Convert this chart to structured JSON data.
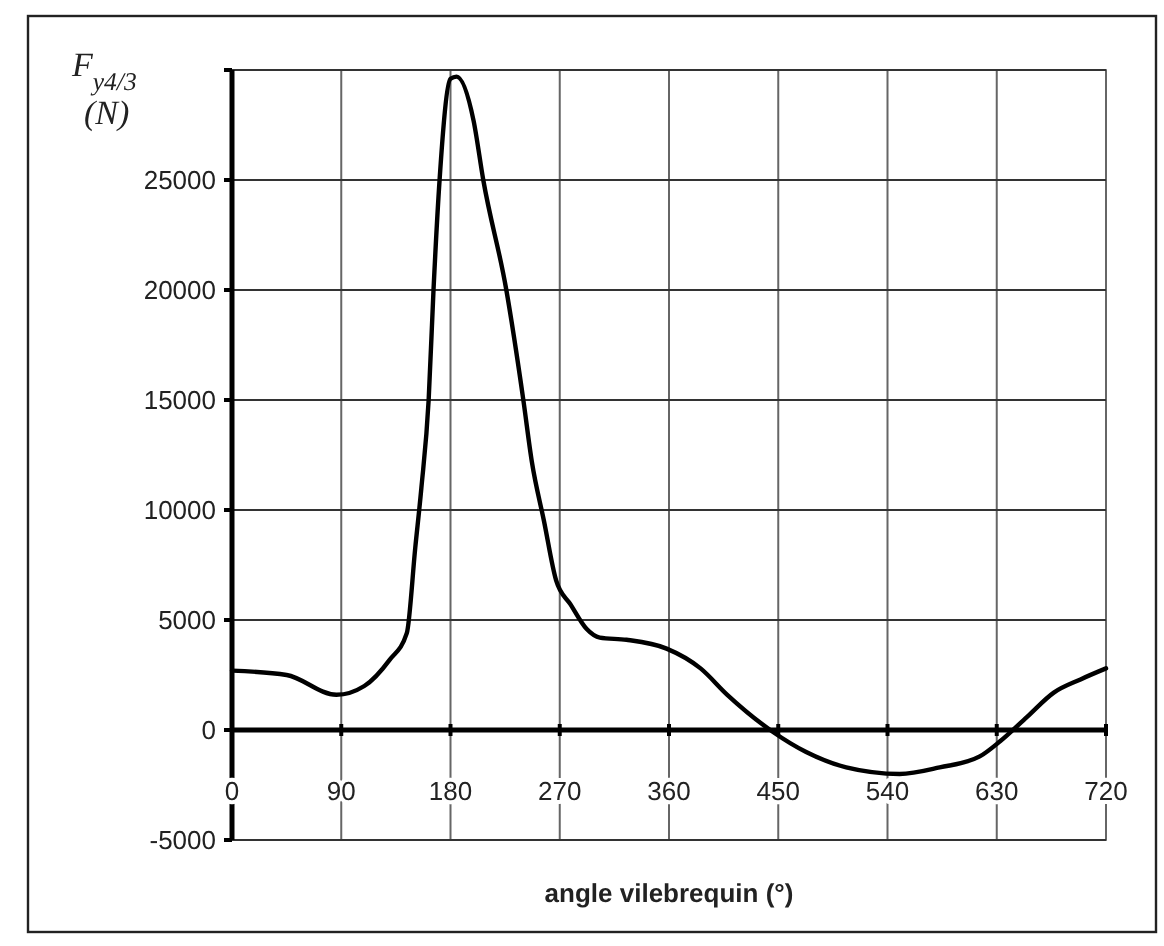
{
  "chart_data": {
    "type": "line",
    "xlabel": "angle vilebrequin (°)",
    "ylabel": "F$_{y4/3}$ (N)",
    "xlim": [
      0,
      720
    ],
    "xticks": [
      0,
      90,
      180,
      270,
      360,
      450,
      540,
      630,
      720
    ],
    "ylim": [
      -5000,
      30000
    ],
    "yticks": [
      -5000,
      0,
      5000,
      10000,
      15000,
      20000,
      25000,
      {
        "value": 30000,
        "label": null
      }
    ],
    "grid": true,
    "marker": "none",
    "line_style": "solid",
    "series": [
      {
        "color": "#000000",
        "x": [
          0,
          45,
          86,
          109,
          130,
          144,
          151,
          156,
          162,
          166,
          171,
          180,
          185,
          199,
          207,
          226,
          240,
          247,
          257,
          267,
          279,
          292,
          303,
          325,
          358,
          386,
          408,
          446,
          473,
          506,
          550,
          583,
          616,
          633,
          655,
          677,
          699,
          720
        ],
        "values": [
          2700,
          2500,
          1600,
          2000,
          3200,
          4400,
          8300,
          11000,
          15000,
          20000,
          25000,
          29600,
          29700,
          27700,
          25000,
          20000,
          15000,
          12200,
          9500,
          6800,
          5700,
          4600,
          4200,
          4100,
          3700,
          2800,
          1600,
          -100,
          -1000,
          -1700,
          -2000,
          -1700,
          -1200,
          -500,
          600,
          1700,
          2300,
          2800
        ]
      }
    ]
  }
}
